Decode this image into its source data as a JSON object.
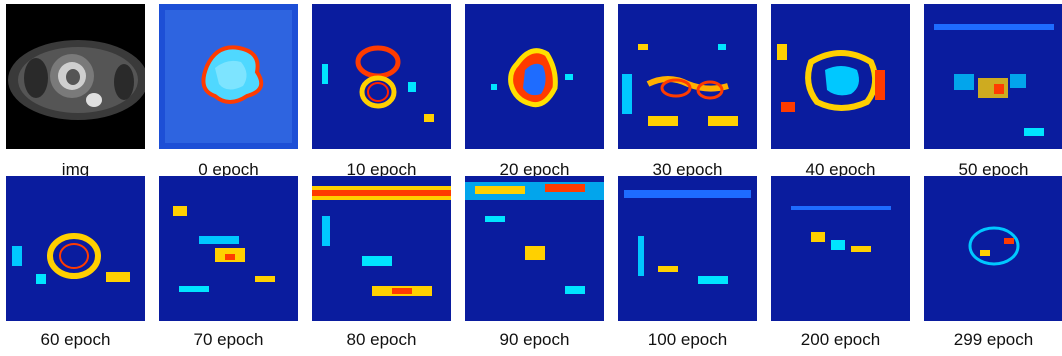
{
  "figure": {
    "panels": [
      {
        "label": "img",
        "kind": "mri"
      },
      {
        "label": "0 epoch",
        "kind": "heatmap"
      },
      {
        "label": "10 epoch",
        "kind": "heatmap"
      },
      {
        "label": "20 epoch",
        "kind": "heatmap"
      },
      {
        "label": "30 epoch",
        "kind": "heatmap"
      },
      {
        "label": "40 epoch",
        "kind": "heatmap"
      },
      {
        "label": "50 epoch",
        "kind": "heatmap"
      },
      {
        "label": "60 epoch",
        "kind": "heatmap"
      },
      {
        "label": "70 epoch",
        "kind": "heatmap"
      },
      {
        "label": "80 epoch",
        "kind": "heatmap"
      },
      {
        "label": "90 epoch",
        "kind": "heatmap"
      },
      {
        "label": "100 epoch",
        "kind": "heatmap"
      },
      {
        "label": "200 epoch",
        "kind": "heatmap"
      },
      {
        "label": "299 epoch",
        "kind": "heatmap"
      }
    ],
    "colors": {
      "heatmap_background": "#0a1c9e",
      "heatmap_cool": "#00ffff",
      "heatmap_mid": "#ffff00",
      "heatmap_hot": "#ff0000",
      "mri_background": "#000000"
    }
  }
}
